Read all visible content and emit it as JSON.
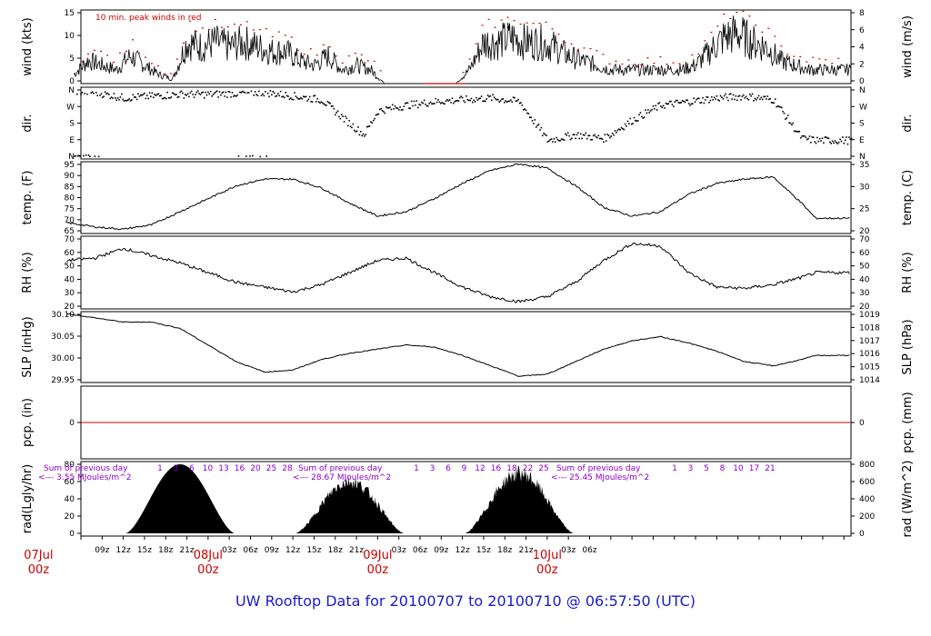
{
  "title": "UW Rooftop Data for 20100707  to  20100710 @ 06:57:50  (UTC)",
  "colors": {
    "series": "#000000",
    "peak": "#cc0000",
    "zero_line": "#cc0000",
    "annotation": "#8a00cc",
    "title": "#1a1acc",
    "date_labels": "#cc0000"
  },
  "time_axis": {
    "hour_ticks": [
      "09z",
      "12z",
      "15z",
      "18z",
      "21z",
      "03z",
      "06z",
      "09z",
      "12z",
      "15z",
      "18z",
      "21z",
      "03z",
      "06z",
      "09z",
      "12z",
      "15z",
      "18z",
      "21z",
      "03z",
      "06z"
    ],
    "date_labels": [
      {
        "date": "07Jul",
        "hour": "00z"
      },
      {
        "date": "08Jul",
        "hour": "00z"
      },
      {
        "date": "09Jul",
        "hour": "00z"
      },
      {
        "date": "10Jul",
        "hour": "00z"
      }
    ]
  },
  "chart_data": [
    {
      "type": "line",
      "panel": "wind",
      "ylabel_left": "wind (kts)",
      "ylabel_right": "wind (m/s)",
      "annotation": "10 min. peak winds in red",
      "yticks_left": [
        "0",
        "5",
        "10",
        "15"
      ],
      "yticks_right": [
        "0",
        "2",
        "4",
        "6",
        "8"
      ],
      "ylim": [
        0,
        16
      ],
      "series": [
        {
          "x_hours": [
            5,
            7,
            9,
            11,
            13,
            15,
            17,
            19,
            21,
            23,
            25,
            27,
            29,
            31,
            33,
            35,
            37,
            39,
            41,
            43,
            45,
            47,
            49,
            51,
            53,
            55,
            57,
            59,
            61,
            63,
            65,
            67,
            69,
            71,
            73,
            75,
            77,
            79,
            81,
            83,
            85,
            87,
            89,
            91,
            93,
            95,
            97,
            99,
            101,
            103,
            105,
            107,
            109,
            111
          ],
          "values": [
            2,
            5,
            4,
            3,
            6,
            4,
            2,
            1,
            9,
            8,
            9,
            8,
            9,
            8,
            7,
            7,
            5,
            4,
            6,
            3,
            4,
            3,
            0,
            0,
            0,
            0,
            0,
            0,
            3,
            9,
            9,
            10,
            9,
            9,
            8,
            6,
            5,
            4,
            3,
            3,
            3,
            3,
            3,
            3,
            4,
            7,
            10,
            11,
            9,
            8,
            5,
            4,
            3,
            3
          ]
        }
      ]
    },
    {
      "type": "scatter",
      "panel": "dir",
      "ylabel_left": "dir.",
      "ylabel_right": "dir.",
      "yticks_left": [
        "N",
        "E",
        "S",
        "W",
        "N"
      ],
      "yticks_right": [
        "N",
        "E",
        "S",
        "W",
        "N"
      ],
      "series": [
        {
          "x_hours": [
            4,
            8,
            12,
            16,
            20,
            24,
            28,
            32,
            36,
            40,
            44,
            46,
            48,
            52,
            56,
            60,
            64,
            68,
            72,
            76,
            80,
            84,
            88,
            92,
            96,
            100,
            104,
            108,
            110
          ],
          "values": [
            360,
            350,
            320,
            330,
            340,
            340,
            345,
            350,
            330,
            310,
            180,
            120,
            250,
            280,
            300,
            310,
            320,
            300,
            90,
            120,
            100,
            200,
            280,
            300,
            320,
            330,
            310,
            100,
            90
          ]
        }
      ]
    },
    {
      "type": "line",
      "panel": "temp",
      "ylabel_left": "temp. (F)",
      "ylabel_right": "temp. (C)",
      "yticks_left": [
        "65",
        "70",
        "75",
        "80",
        "85",
        "90",
        "95"
      ],
      "yticks_right": [
        "20",
        "25",
        "30",
        "35"
      ],
      "ylim": [
        62,
        95
      ],
      "series": [
        {
          "x_hours": [
            4,
            8,
            12,
            16,
            20,
            24,
            28,
            32,
            36,
            40,
            44,
            48,
            52,
            56,
            60,
            64,
            68,
            72,
            76,
            80,
            84,
            88,
            92,
            96,
            100,
            104,
            108,
            110
          ],
          "values": [
            67,
            65,
            64,
            66,
            72,
            78,
            84,
            87,
            87,
            83,
            76,
            70,
            72,
            78,
            85,
            91,
            94,
            92,
            84,
            74,
            70,
            72,
            80,
            85,
            87,
            88,
            76,
            69
          ]
        }
      ]
    },
    {
      "type": "line",
      "panel": "rh",
      "ylabel_left": "RH (%)",
      "ylabel_right": "RH (%)",
      "yticks_left": [
        "20",
        "30",
        "40",
        "50",
        "60",
        "70"
      ],
      "yticks_right": [
        "20",
        "30",
        "40",
        "50",
        "60",
        "70"
      ],
      "ylim": [
        18,
        78
      ],
      "series": [
        {
          "x_hours": [
            4,
            8,
            12,
            16,
            20,
            24,
            28,
            32,
            36,
            40,
            44,
            48,
            52,
            56,
            60,
            64,
            68,
            72,
            76,
            80,
            84,
            88,
            92,
            96,
            100,
            104,
            108,
            110
          ],
          "values": [
            58,
            60,
            68,
            62,
            56,
            48,
            40,
            36,
            32,
            38,
            48,
            58,
            60,
            48,
            36,
            28,
            24,
            28,
            40,
            58,
            72,
            70,
            48,
            36,
            35,
            38,
            44,
            48
          ]
        }
      ]
    },
    {
      "type": "line",
      "panel": "slp",
      "ylabel_left": "SLP (inHg)",
      "ylabel_right": "SLP (hPa)",
      "yticks_left": [
        "29.95",
        "30.00",
        "30.05",
        "30.10"
      ],
      "yticks_right": [
        "1014",
        "1015",
        "1016",
        "1017",
        "1018",
        "1019"
      ],
      "ylim": [
        29.94,
        30.11
      ],
      "series": [
        {
          "x_hours": [
            4,
            8,
            12,
            16,
            20,
            24,
            28,
            32,
            36,
            40,
            44,
            48,
            52,
            56,
            60,
            64,
            68,
            72,
            76,
            80,
            84,
            88,
            92,
            96,
            100,
            104,
            108,
            110
          ],
          "values": [
            30.105,
            30.095,
            30.085,
            30.085,
            30.07,
            30.03,
            29.99,
            29.965,
            29.97,
            29.995,
            30.01,
            30.02,
            30.03,
            30.025,
            30.005,
            29.98,
            29.955,
            29.96,
            29.99,
            30.02,
            30.04,
            30.05,
            30.035,
            30.015,
            29.99,
            29.98,
            29.995,
            30.005
          ]
        }
      ]
    },
    {
      "type": "line",
      "panel": "pcp",
      "ylabel_left": "pcp. (in)",
      "ylabel_right": "pcp. (mm)",
      "yticks_left": [
        "0"
      ],
      "yticks_right": [
        "0"
      ],
      "series": [
        {
          "values": [
            0
          ]
        }
      ]
    },
    {
      "type": "area",
      "panel": "rad",
      "ylabel_left": "rad(Lgly/hr)",
      "ylabel_right": "rad (W/m^2)",
      "yticks_left": [
        "0",
        "20",
        "40",
        "60",
        "80"
      ],
      "yticks_right": [
        "0",
        "200",
        "400",
        "600",
        "800"
      ],
      "ylim": [
        0,
        80
      ],
      "day_peaks": [
        80,
        65,
        75
      ],
      "annotations": [
        {
          "line1": "Sum of previous day",
          "line2": "<--- 3.55 MJoules/m^2",
          "hours": [
            "1",
            "3",
            "6",
            "10",
            "13",
            "16",
            "20",
            "25",
            "28"
          ]
        },
        {
          "line1": "Sum of previous day",
          "line2": "<--- 28.67 MJoules/m^2",
          "hours": [
            "1",
            "3",
            "6",
            "9",
            "12",
            "16",
            "18",
            "22",
            "25"
          ]
        },
        {
          "line1": "Sum of previous day",
          "line2": "<--- 25.45 MJoules/m^2",
          "hours": [
            "1",
            "3",
            "5",
            "8",
            "10",
            "17",
            "21"
          ]
        }
      ]
    }
  ]
}
